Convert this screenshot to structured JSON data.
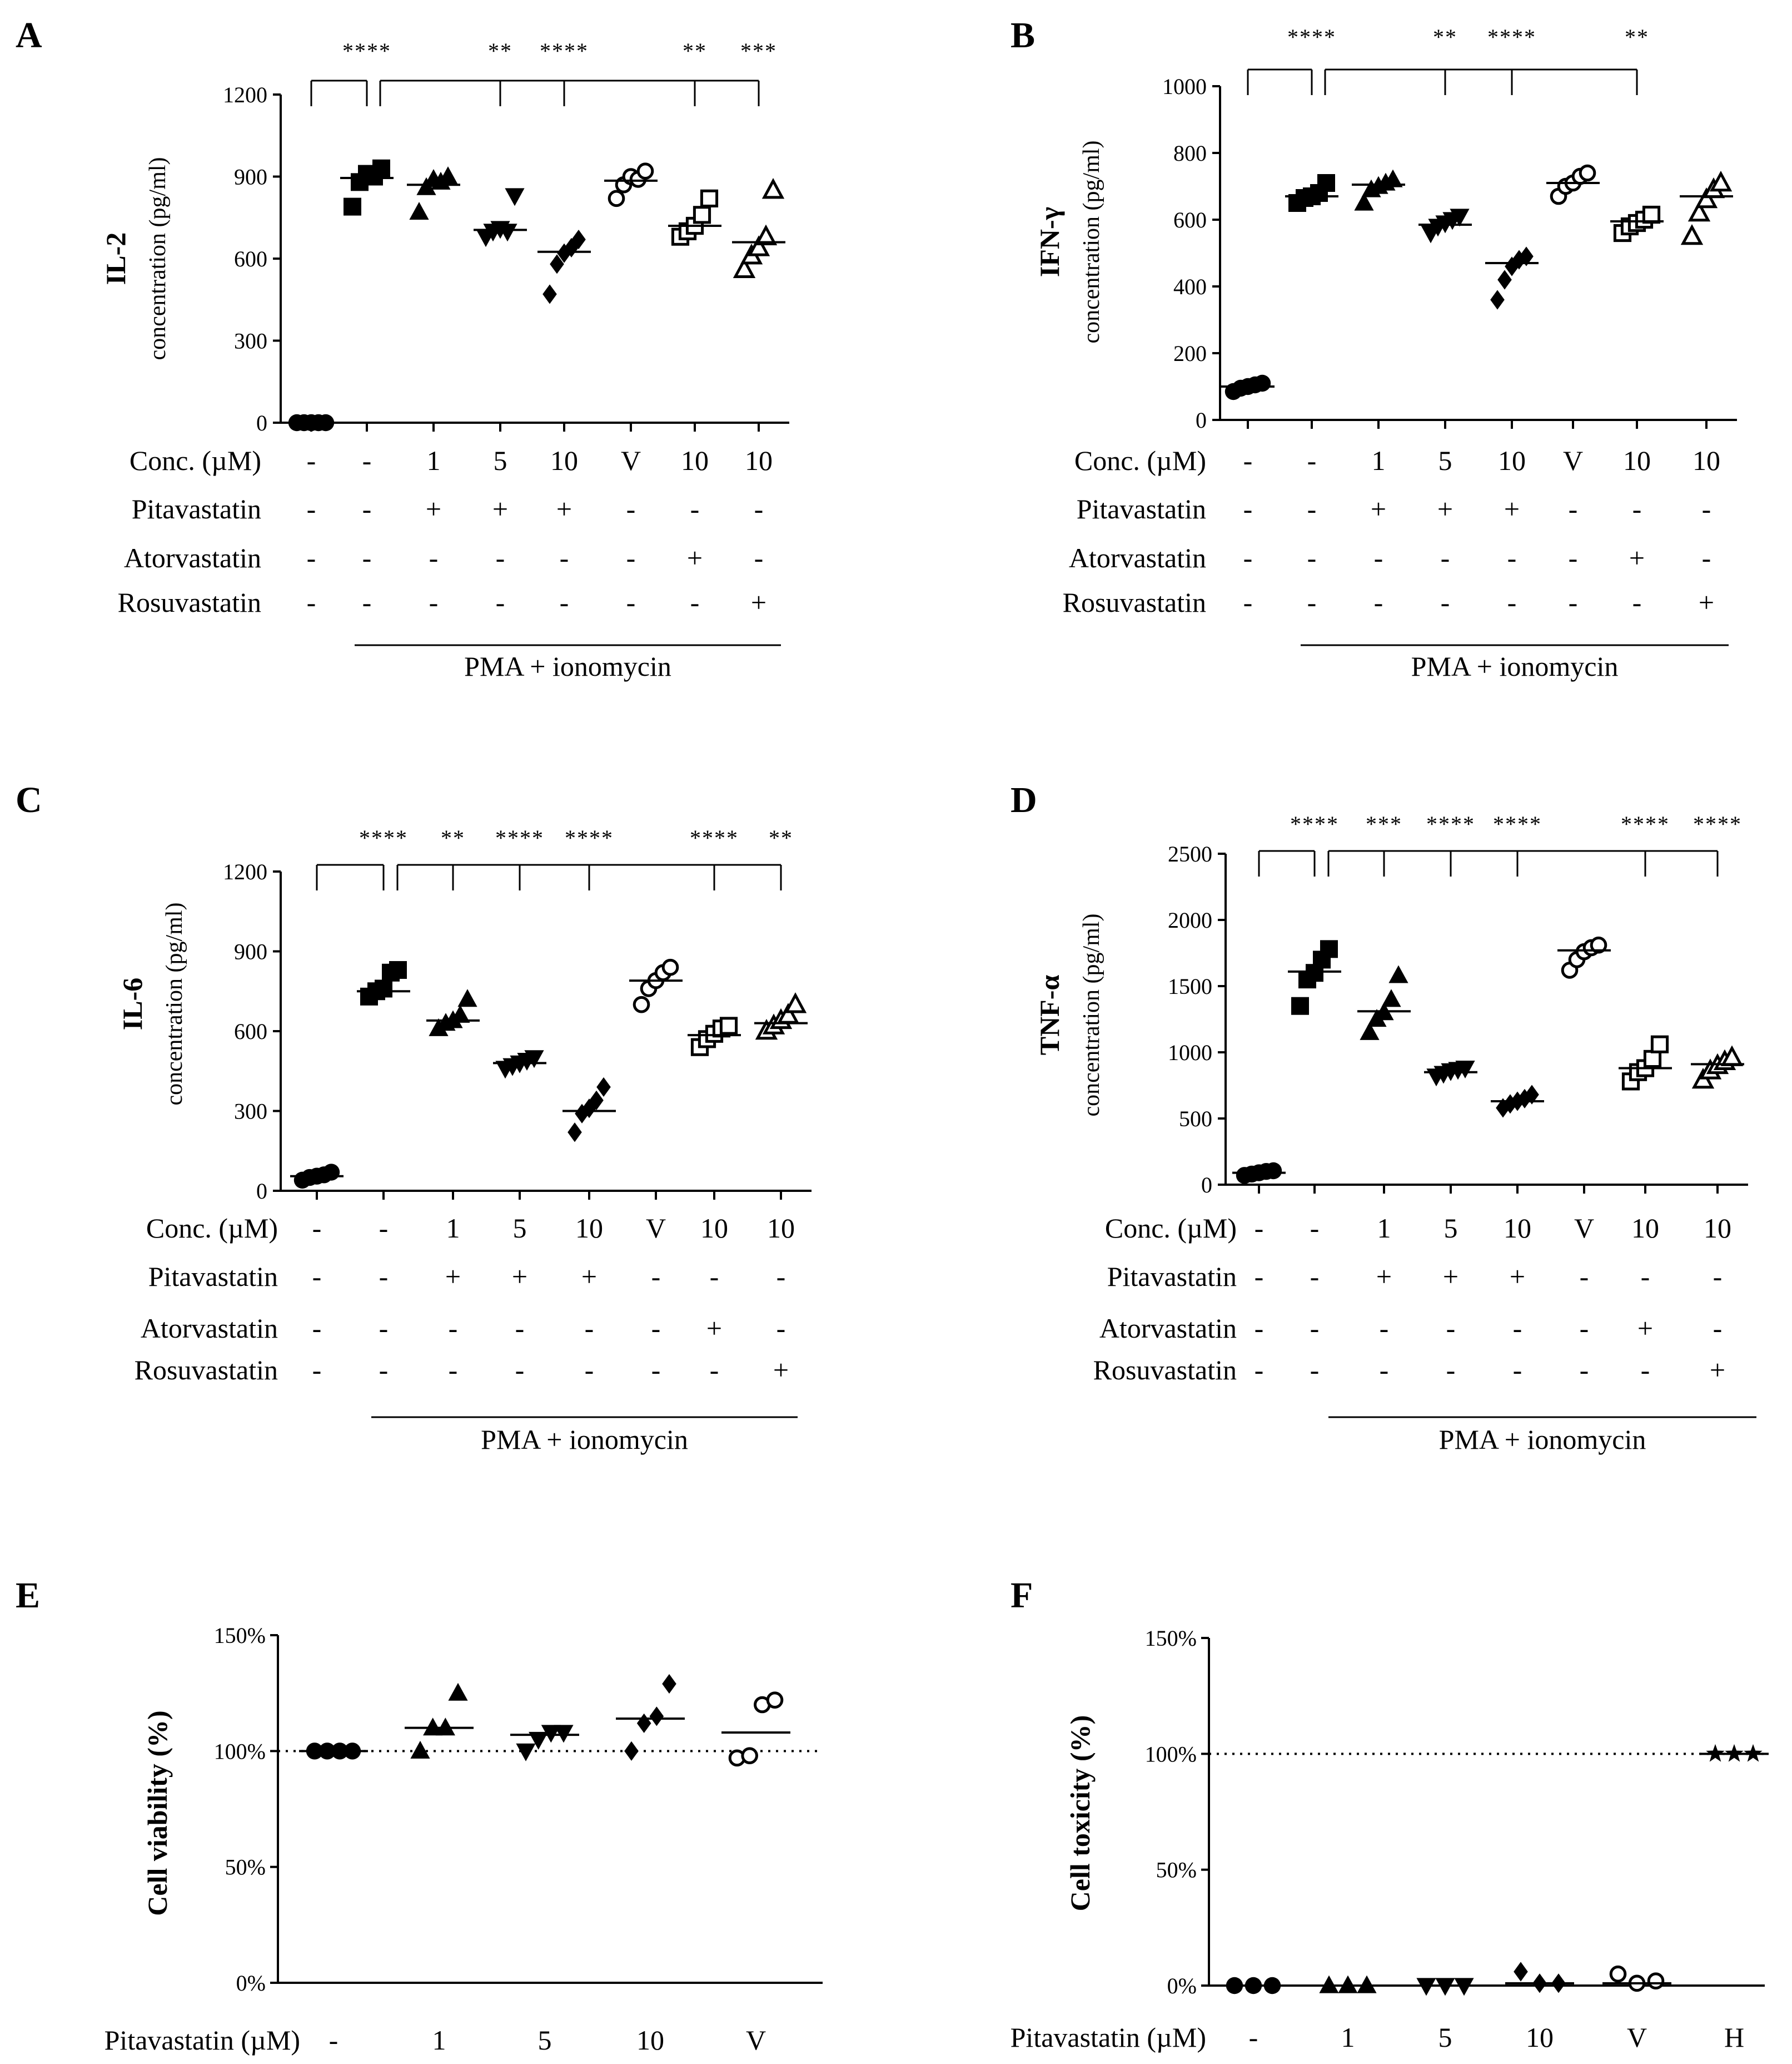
{
  "panel_letters": [
    "A",
    "B",
    "C",
    "D",
    "E",
    "F"
  ],
  "row_labels": {
    "conc": "Conc. (µM)",
    "pita": "Pitavastatin",
    "ator": "Atorvastatin",
    "rosu": "Rosuvastatin",
    "pita_um": "Pitavastatin (µM)"
  },
  "group_label": "PMA + ionomycin",
  "conditions": {
    "conc": [
      "-",
      "-",
      "1",
      "5",
      "10",
      "V",
      "10",
      "10"
    ],
    "pita": [
      "-",
      "-",
      "+",
      "+",
      "+",
      "-",
      "-",
      "-"
    ],
    "ator": [
      "-",
      "-",
      "-",
      "-",
      "-",
      "-",
      "+",
      "-"
    ],
    "rosu": [
      "-",
      "-",
      "-",
      "-",
      "-",
      "-",
      "-",
      "+"
    ]
  },
  "chart_data": [
    {
      "panel": "A",
      "type": "scatter",
      "ylabel_bold": "IL-2",
      "ylabel_sub": "concentration (pg/ml)",
      "ylim": [
        0,
        1200
      ],
      "yticks": [
        "0",
        "300",
        "600",
        "900",
        "1200"
      ],
      "markers": [
        "dot",
        "square",
        "tri_up",
        "tri_down",
        "diamond",
        "circle_open",
        "square_open",
        "tri_open"
      ],
      "groups": [
        {
          "values": [
            0,
            0,
            0,
            0,
            0
          ],
          "mean": 0
        },
        {
          "values": [
            790,
            880,
            910,
            900,
            930
          ],
          "mean": 895
        },
        {
          "values": [
            770,
            860,
            890,
            880,
            900
          ],
          "mean": 870
        },
        {
          "values": [
            680,
            700,
            710,
            700,
            830
          ],
          "mean": 705
        },
        {
          "values": [
            470,
            580,
            620,
            640,
            670
          ],
          "mean": 625
        },
        {
          "values": [
            820,
            870,
            900,
            890,
            920
          ],
          "mean": 885
        },
        {
          "values": [
            680,
            700,
            720,
            760,
            820
          ],
          "mean": 720
        },
        {
          "values": [
            560,
            610,
            640,
            680,
            850
          ],
          "mean": 660
        }
      ],
      "significance": [
        {
          "from": 0,
          "to": 1,
          "label": "****"
        },
        {
          "from": 1.2,
          "to": 3,
          "label": "**"
        },
        {
          "from": 1.2,
          "to": 4,
          "label": "****"
        },
        {
          "from": 1.2,
          "to": 6,
          "label": "**"
        },
        {
          "from": 1.2,
          "to": 7,
          "label": "***"
        }
      ]
    },
    {
      "panel": "B",
      "type": "scatter",
      "ylabel_bold": "IFN-γ",
      "ylabel_sub": "concentration (pg/ml)",
      "ylim": [
        0,
        1000
      ],
      "yticks": [
        "0",
        "200",
        "400",
        "600",
        "800",
        "1000"
      ],
      "markers": [
        "dot",
        "square",
        "tri_up",
        "tri_down",
        "diamond",
        "circle_open",
        "square_open",
        "tri_open"
      ],
      "groups": [
        {
          "values": [
            85,
            95,
            100,
            105,
            110
          ],
          "mean": 100
        },
        {
          "values": [
            650,
            665,
            670,
            680,
            710
          ],
          "mean": 670
        },
        {
          "values": [
            650,
            690,
            700,
            710,
            720
          ],
          "mean": 705
        },
        {
          "values": [
            560,
            580,
            590,
            600,
            610
          ],
          "mean": 585
        },
        {
          "values": [
            360,
            420,
            460,
            480,
            490
          ],
          "mean": 470
        },
        {
          "values": [
            670,
            700,
            710,
            730,
            740
          ],
          "mean": 710
        },
        {
          "values": [
            560,
            580,
            590,
            600,
            615
          ],
          "mean": 595
        },
        {
          "values": [
            550,
            620,
            660,
            690,
            710
          ],
          "mean": 670
        }
      ],
      "significance": [
        {
          "from": 0,
          "to": 1,
          "label": "****"
        },
        {
          "from": 1.2,
          "to": 3,
          "label": "**"
        },
        {
          "from": 1.2,
          "to": 4,
          "label": "****"
        },
        {
          "from": 1.2,
          "to": 6,
          "label": "**"
        }
      ]
    },
    {
      "panel": "C",
      "type": "scatter",
      "ylabel_bold": "IL-6",
      "ylabel_sub": "concentration (pg/ml)",
      "ylim": [
        0,
        1200
      ],
      "yticks": [
        "0",
        "300",
        "600",
        "900",
        "1200"
      ],
      "markers": [
        "dot",
        "square",
        "tri_up",
        "tri_down",
        "diamond",
        "circle_open",
        "square_open",
        "tri_open"
      ],
      "groups": [
        {
          "values": [
            40,
            50,
            55,
            60,
            70
          ],
          "mean": 55
        },
        {
          "values": [
            730,
            750,
            760,
            820,
            830
          ],
          "mean": 750
        },
        {
          "values": [
            610,
            630,
            640,
            660,
            720
          ],
          "mean": 640
        },
        {
          "values": [
            460,
            470,
            480,
            490,
            500
          ],
          "mean": 480
        },
        {
          "values": [
            220,
            290,
            310,
            340,
            390
          ],
          "mean": 300
        },
        {
          "values": [
            700,
            760,
            790,
            820,
            840
          ],
          "mean": 790
        },
        {
          "values": [
            540,
            570,
            590,
            610,
            620
          ],
          "mean": 585
        },
        {
          "values": [
            600,
            620,
            640,
            660,
            700
          ],
          "mean": 630
        }
      ],
      "significance": [
        {
          "from": 0,
          "to": 1,
          "label": "****"
        },
        {
          "from": 1.2,
          "to": 2,
          "label": "**"
        },
        {
          "from": 1.2,
          "to": 3,
          "label": "****"
        },
        {
          "from": 1.2,
          "to": 4,
          "label": "****"
        },
        {
          "from": 1.2,
          "to": 6,
          "label": "****"
        },
        {
          "from": 1.2,
          "to": 7,
          "label": "**"
        }
      ]
    },
    {
      "panel": "D",
      "type": "scatter",
      "ylabel_bold": "TNF-α",
      "ylabel_sub": "concentration (pg/ml)",
      "ylim": [
        0,
        2500
      ],
      "yticks": [
        "0",
        "500",
        "1000",
        "1500",
        "2000",
        "2500"
      ],
      "markers": [
        "dot",
        "square",
        "tri_up",
        "tri_down",
        "diamond",
        "circle_open",
        "square_open",
        "tri_open"
      ],
      "groups": [
        {
          "values": [
            70,
            80,
            90,
            100,
            105
          ],
          "mean": 90
        },
        {
          "values": [
            1350,
            1550,
            1600,
            1700,
            1780
          ],
          "mean": 1610
        },
        {
          "values": [
            1150,
            1250,
            1300,
            1400,
            1580
          ],
          "mean": 1310
        },
        {
          "values": [
            820,
            840,
            860,
            870,
            880
          ],
          "mean": 850
        },
        {
          "values": [
            580,
            610,
            630,
            650,
            680
          ],
          "mean": 630
        },
        {
          "values": [
            1620,
            1700,
            1760,
            1790,
            1810
          ],
          "mean": 1770
        },
        {
          "values": [
            780,
            850,
            880,
            950,
            1060
          ],
          "mean": 880
        },
        {
          "values": [
            790,
            860,
            900,
            930,
            960
          ],
          "mean": 910
        }
      ],
      "significance": [
        {
          "from": 0,
          "to": 1,
          "label": "****"
        },
        {
          "from": 1.2,
          "to": 2,
          "label": "***"
        },
        {
          "from": 1.2,
          "to": 3,
          "label": "****"
        },
        {
          "from": 1.2,
          "to": 4,
          "label": "****"
        },
        {
          "from": 1.2,
          "to": 6,
          "label": "****"
        },
        {
          "from": 1.2,
          "to": 7,
          "label": "****"
        }
      ]
    },
    {
      "panel": "E",
      "type": "scatter",
      "ylabel": "Cell viability (%)",
      "ylim": [
        0,
        150
      ],
      "yticks": [
        "0%",
        "50%",
        "100%",
        "150%"
      ],
      "reference_line": 100,
      "categories": [
        "-",
        "1",
        "5",
        "10",
        "V"
      ],
      "markers": [
        "dot",
        "tri_up",
        "tri_down",
        "diamond",
        "circle_open"
      ],
      "groups": [
        {
          "values": [
            100,
            100,
            100,
            100
          ],
          "mean": 100
        },
        {
          "values": [
            100,
            110,
            110,
            125
          ],
          "mean": 110
        },
        {
          "values": [
            100,
            105,
            108,
            108
          ],
          "mean": 107
        },
        {
          "values": [
            100,
            112,
            115,
            129
          ],
          "mean": 114
        },
        {
          "values": [
            97,
            98,
            120,
            122
          ],
          "mean": 108
        }
      ]
    },
    {
      "panel": "F",
      "type": "scatter",
      "ylabel": "Cell toxicity (%)",
      "ylim": [
        0,
        150
      ],
      "yticks": [
        "0%",
        "50%",
        "100%",
        "150%"
      ],
      "reference_line": 100,
      "categories": [
        "-",
        "1",
        "5",
        "10",
        "V",
        "H"
      ],
      "markers": [
        "dot",
        "tri_up",
        "tri_down",
        "diamond",
        "circle_open",
        "star"
      ],
      "groups": [
        {
          "values": [
            0,
            0,
            0
          ],
          "mean": 0
        },
        {
          "values": [
            0,
            0,
            0
          ],
          "mean": 0
        },
        {
          "values": [
            0,
            0,
            0
          ],
          "mean": 0
        },
        {
          "values": [
            6,
            1,
            1
          ],
          "mean": 1
        },
        {
          "values": [
            5,
            1,
            2
          ],
          "mean": 1
        },
        {
          "values": [
            100,
            100,
            100
          ],
          "mean": 100
        }
      ]
    }
  ]
}
